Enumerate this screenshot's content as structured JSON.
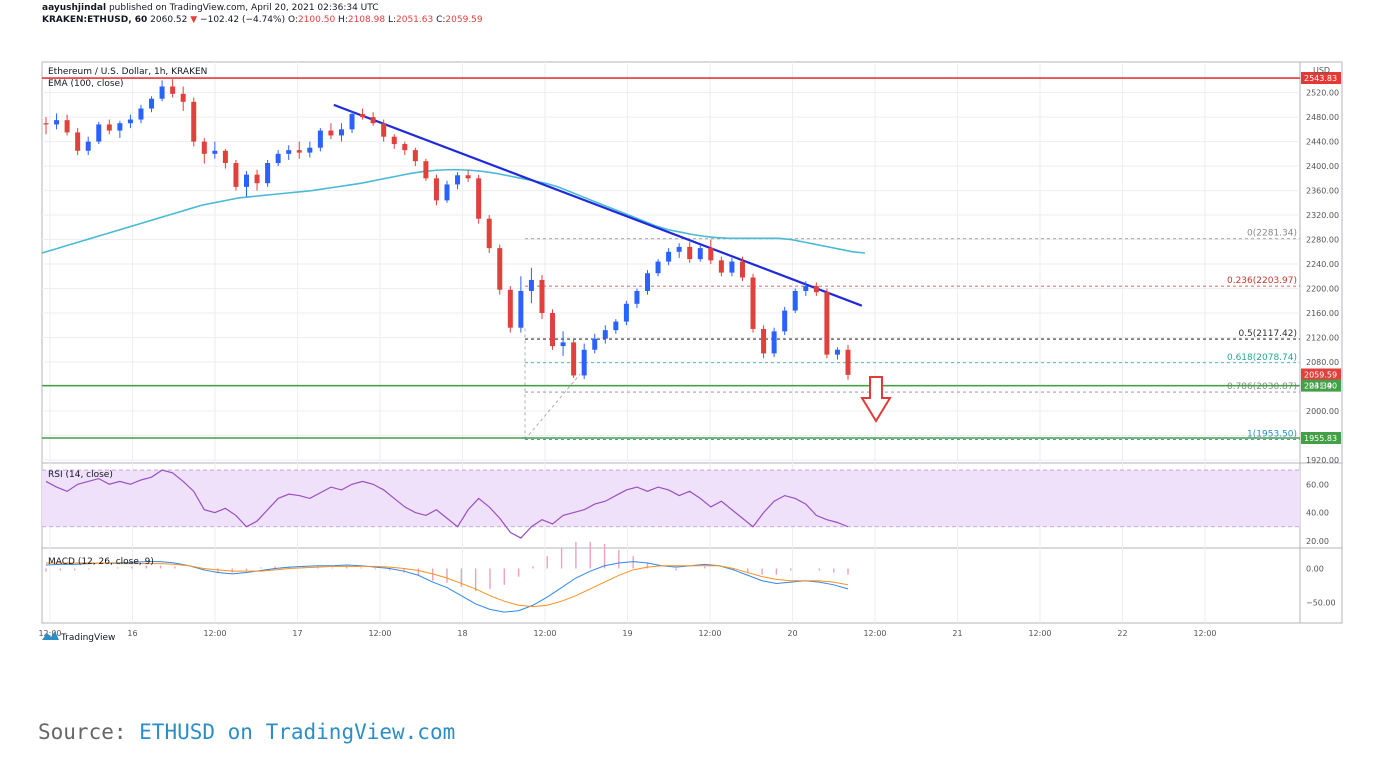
{
  "header": {
    "author": "aayushjindal",
    "published": "published on TradingView.com, April 20, 2021 02:36:34 UTC",
    "symbol": "KRAKEN:ETHUSD, 60",
    "last": "2060.52",
    "change_arrow": "▼",
    "change": "−102.42 (−4.74%)",
    "o_label": "O:",
    "o": "2100.50",
    "h_label": "H:",
    "h": "2108.98",
    "l_label": "L:",
    "l": "2051.63",
    "c_label": "C:",
    "c": "2059.59"
  },
  "panel_title": "Ethereum / U.S. Dollar, 1h, KRAKEN",
  "ema_label": "EMA (100, close)",
  "rsi_label": "RSI (14, close)",
  "macd_label": "MACD (12, 26, close, 9)",
  "brand": "TradingView",
  "currency_label": "USD",
  "source": {
    "prefix": "Source: ",
    "link": "ETHUSD on TradingView.com"
  },
  "colors": {
    "bull": "#2962ff",
    "bear": "#e0413d",
    "ema": "#4bbad6",
    "trend": "#1f2bdb",
    "support": "#43a047",
    "resistance": "#e53935",
    "rsi": "#9c4fc2",
    "rsi_band": "#efe1fa",
    "macd": "#2e88e6",
    "signal": "#ff8f1f"
  },
  "chart_data": {
    "type": "candlestick",
    "x_ticks": [
      "12:00",
      "16",
      "12:00",
      "17",
      "12:00",
      "18",
      "12:00",
      "19",
      "12:00",
      "20",
      "12:00",
      "21",
      "12:00",
      "22",
      "12:00"
    ],
    "y_ticks": [
      "2520.00",
      "2480.00",
      "2440.00",
      "2400.00",
      "2360.00",
      "2320.00",
      "2280.00",
      "2240.00",
      "2200.00",
      "2160.00",
      "2120.00",
      "2080.00",
      "2040.00",
      "2000.00",
      "1960.00",
      "1920.00"
    ],
    "ylim": [
      1915,
      2570
    ],
    "price_labels": [
      {
        "value": 2543.83,
        "text": "2543.83",
        "color": "#e53935"
      },
      {
        "value": 2059.59,
        "text": "2059.59",
        "color": "#e0413d"
      },
      {
        "value": 2041.4,
        "text": "2041.40",
        "color": "#43a047"
      },
      {
        "value": 1955.83,
        "text": "1955.83",
        "color": "#43a047"
      }
    ],
    "countdown": "23:39",
    "horizontal_lines": [
      {
        "value": 2543.83,
        "color": "#e53935"
      },
      {
        "value": 2041.4,
        "color": "#43a047"
      },
      {
        "value": 1955.83,
        "color": "#43a047"
      }
    ],
    "fib_levels": [
      {
        "text": "0(2281.34)",
        "value": 2281.34,
        "color": "#888888"
      },
      {
        "text": "0.236(2203.97)",
        "value": 2203.97,
        "color": "#c0392b"
      },
      {
        "text": "0.5(2117.42)",
        "value": 2117.42,
        "color": "#333333"
      },
      {
        "text": "0.618(2078.74)",
        "value": 2078.74,
        "color": "#26a69a"
      },
      {
        "text": "0.786(2030.87)",
        "value": 2030.87,
        "color": "#888888"
      },
      {
        "text": "1(1953.50)",
        "value": 1953.5,
        "color": "#2c8ec6"
      }
    ],
    "trendline": {
      "from": {
        "x": 17.22,
        "y": 2500
      },
      "to": {
        "x": 20.42,
        "y": 2172
      }
    },
    "candles": [
      {
        "o": 2470,
        "h": 2480,
        "l": 2452,
        "c": 2468
      },
      {
        "o": 2468,
        "h": 2486,
        "l": 2460,
        "c": 2475
      },
      {
        "o": 2475,
        "h": 2484,
        "l": 2450,
        "c": 2455
      },
      {
        "o": 2455,
        "h": 2462,
        "l": 2418,
        "c": 2425
      },
      {
        "o": 2425,
        "h": 2448,
        "l": 2418,
        "c": 2440
      },
      {
        "o": 2440,
        "h": 2472,
        "l": 2436,
        "c": 2468
      },
      {
        "o": 2468,
        "h": 2476,
        "l": 2452,
        "c": 2458
      },
      {
        "o": 2458,
        "h": 2474,
        "l": 2446,
        "c": 2470
      },
      {
        "o": 2470,
        "h": 2484,
        "l": 2462,
        "c": 2476
      },
      {
        "o": 2476,
        "h": 2500,
        "l": 2470,
        "c": 2494
      },
      {
        "o": 2494,
        "h": 2514,
        "l": 2488,
        "c": 2510
      },
      {
        "o": 2510,
        "h": 2540,
        "l": 2506,
        "c": 2530
      },
      {
        "o": 2530,
        "h": 2542,
        "l": 2512,
        "c": 2518
      },
      {
        "o": 2518,
        "h": 2530,
        "l": 2490,
        "c": 2505
      },
      {
        "o": 2505,
        "h": 2512,
        "l": 2432,
        "c": 2440
      },
      {
        "o": 2440,
        "h": 2446,
        "l": 2404,
        "c": 2420
      },
      {
        "o": 2420,
        "h": 2440,
        "l": 2412,
        "c": 2425
      },
      {
        "o": 2425,
        "h": 2428,
        "l": 2396,
        "c": 2405
      },
      {
        "o": 2405,
        "h": 2410,
        "l": 2360,
        "c": 2366
      },
      {
        "o": 2366,
        "h": 2392,
        "l": 2350,
        "c": 2386
      },
      {
        "o": 2386,
        "h": 2394,
        "l": 2360,
        "c": 2372
      },
      {
        "o": 2372,
        "h": 2410,
        "l": 2366,
        "c": 2405
      },
      {
        "o": 2405,
        "h": 2426,
        "l": 2400,
        "c": 2420
      },
      {
        "o": 2420,
        "h": 2434,
        "l": 2410,
        "c": 2426
      },
      {
        "o": 2426,
        "h": 2440,
        "l": 2412,
        "c": 2422
      },
      {
        "o": 2422,
        "h": 2440,
        "l": 2414,
        "c": 2430
      },
      {
        "o": 2430,
        "h": 2462,
        "l": 2424,
        "c": 2458
      },
      {
        "o": 2458,
        "h": 2470,
        "l": 2444,
        "c": 2450
      },
      {
        "o": 2450,
        "h": 2470,
        "l": 2440,
        "c": 2460
      },
      {
        "o": 2460,
        "h": 2490,
        "l": 2454,
        "c": 2485
      },
      {
        "o": 2485,
        "h": 2494,
        "l": 2476,
        "c": 2480
      },
      {
        "o": 2480,
        "h": 2488,
        "l": 2466,
        "c": 2470
      },
      {
        "o": 2470,
        "h": 2476,
        "l": 2440,
        "c": 2448
      },
      {
        "o": 2448,
        "h": 2452,
        "l": 2428,
        "c": 2436
      },
      {
        "o": 2436,
        "h": 2440,
        "l": 2418,
        "c": 2426
      },
      {
        "o": 2426,
        "h": 2430,
        "l": 2400,
        "c": 2408
      },
      {
        "o": 2408,
        "h": 2412,
        "l": 2376,
        "c": 2380
      },
      {
        "o": 2380,
        "h": 2386,
        "l": 2336,
        "c": 2344
      },
      {
        "o": 2344,
        "h": 2376,
        "l": 2340,
        "c": 2370
      },
      {
        "o": 2370,
        "h": 2390,
        "l": 2362,
        "c": 2385
      },
      {
        "o": 2385,
        "h": 2394,
        "l": 2374,
        "c": 2380
      },
      {
        "o": 2380,
        "h": 2386,
        "l": 2306,
        "c": 2314
      },
      {
        "o": 2314,
        "h": 2320,
        "l": 2258,
        "c": 2266
      },
      {
        "o": 2266,
        "h": 2272,
        "l": 2190,
        "c": 2198
      },
      {
        "o": 2198,
        "h": 2204,
        "l": 2128,
        "c": 2136
      },
      {
        "o": 2136,
        "h": 2220,
        "l": 2128,
        "c": 2196
      },
      {
        "o": 2196,
        "h": 2234,
        "l": 2176,
        "c": 2214
      },
      {
        "o": 2214,
        "h": 2222,
        "l": 2150,
        "c": 2160
      },
      {
        "o": 2160,
        "h": 2166,
        "l": 2100,
        "c": 2106
      },
      {
        "o": 2106,
        "h": 2130,
        "l": 2090,
        "c": 2112
      },
      {
        "o": 2112,
        "h": 2116,
        "l": 2054,
        "c": 2058
      },
      {
        "o": 2058,
        "h": 2110,
        "l": 2052,
        "c": 2100
      },
      {
        "o": 2100,
        "h": 2126,
        "l": 2094,
        "c": 2118
      },
      {
        "o": 2118,
        "h": 2140,
        "l": 2110,
        "c": 2132
      },
      {
        "o": 2132,
        "h": 2150,
        "l": 2126,
        "c": 2146
      },
      {
        "o": 2146,
        "h": 2180,
        "l": 2140,
        "c": 2175
      },
      {
        "o": 2175,
        "h": 2200,
        "l": 2168,
        "c": 2196
      },
      {
        "o": 2196,
        "h": 2230,
        "l": 2190,
        "c": 2225
      },
      {
        "o": 2225,
        "h": 2248,
        "l": 2220,
        "c": 2244
      },
      {
        "o": 2244,
        "h": 2266,
        "l": 2238,
        "c": 2260
      },
      {
        "o": 2260,
        "h": 2274,
        "l": 2250,
        "c": 2268
      },
      {
        "o": 2268,
        "h": 2276,
        "l": 2242,
        "c": 2248
      },
      {
        "o": 2248,
        "h": 2272,
        "l": 2244,
        "c": 2266
      },
      {
        "o": 2266,
        "h": 2280,
        "l": 2240,
        "c": 2246
      },
      {
        "o": 2246,
        "h": 2252,
        "l": 2220,
        "c": 2226
      },
      {
        "o": 2226,
        "h": 2250,
        "l": 2220,
        "c": 2244
      },
      {
        "o": 2244,
        "h": 2252,
        "l": 2212,
        "c": 2218
      },
      {
        "o": 2218,
        "h": 2224,
        "l": 2128,
        "c": 2134
      },
      {
        "o": 2134,
        "h": 2140,
        "l": 2086,
        "c": 2094
      },
      {
        "o": 2094,
        "h": 2136,
        "l": 2088,
        "c": 2130
      },
      {
        "o": 2130,
        "h": 2170,
        "l": 2124,
        "c": 2164
      },
      {
        "o": 2164,
        "h": 2200,
        "l": 2160,
        "c": 2196
      },
      {
        "o": 2196,
        "h": 2212,
        "l": 2188,
        "c": 2204
      },
      {
        "o": 2204,
        "h": 2210,
        "l": 2188,
        "c": 2194
      },
      {
        "o": 2194,
        "h": 2200,
        "l": 2086,
        "c": 2092
      },
      {
        "o": 2092,
        "h": 2104,
        "l": 2084,
        "c": 2100
      },
      {
        "o": 2100,
        "h": 2108,
        "l": 2051,
        "c": 2059
      }
    ],
    "ema": [
      2258,
      2264,
      2270,
      2276,
      2282,
      2288,
      2294,
      2300,
      2306,
      2312,
      2318,
      2324,
      2330,
      2336,
      2340,
      2344,
      2348,
      2350,
      2352,
      2354,
      2356,
      2358,
      2360,
      2363,
      2366,
      2369,
      2372,
      2376,
      2380,
      2384,
      2388,
      2391,
      2393,
      2394,
      2394,
      2393,
      2391,
      2388,
      2384,
      2380,
      2376,
      2372,
      2366,
      2358,
      2350,
      2342,
      2334,
      2326,
      2318,
      2310,
      2302,
      2296,
      2292,
      2288,
      2285,
      2283,
      2282,
      2282,
      2282,
      2282,
      2282,
      2280,
      2276,
      2272,
      2268,
      2264,
      2260,
      2258
    ],
    "rsi": {
      "ylim": [
        15,
        75
      ],
      "ticks": [
        "60.00",
        "40.00",
        "20.00"
      ],
      "band": [
        30,
        70
      ],
      "values": [
        62,
        58,
        55,
        60,
        62,
        64,
        60,
        62,
        60,
        63,
        65,
        70,
        68,
        62,
        55,
        42,
        40,
        43,
        38,
        30,
        34,
        42,
        50,
        53,
        52,
        50,
        54,
        58,
        56,
        60,
        62,
        60,
        56,
        50,
        44,
        40,
        38,
        42,
        36,
        30,
        42,
        50,
        44,
        36,
        26,
        22,
        30,
        35,
        32,
        38,
        40,
        42,
        46,
        48,
        52,
        56,
        58,
        55,
        58,
        56,
        52,
        55,
        50,
        44,
        48,
        42,
        36,
        30,
        40,
        48,
        52,
        50,
        46,
        38,
        35,
        33,
        30
      ]
    },
    "macd": {
      "ylim": [
        -80,
        30
      ],
      "ticks": [
        "0.00",
        "−50.00"
      ],
      "macd": [
        5,
        6,
        6,
        7,
        8,
        8,
        9,
        10,
        10,
        8,
        4,
        -2,
        -6,
        -8,
        -6,
        -3,
        0,
        2,
        3,
        4,
        4,
        5,
        4,
        2,
        0,
        -4,
        -10,
        -20,
        -28,
        -40,
        -52,
        -60,
        -64,
        -62,
        -54,
        -42,
        -28,
        -14,
        -4,
        4,
        8,
        10,
        8,
        4,
        2,
        4,
        6,
        4,
        -2,
        -10,
        -18,
        -22,
        -20,
        -18,
        -20,
        -24,
        -30
      ],
      "signal": [
        8,
        8,
        8,
        8,
        8,
        7,
        7,
        7,
        7,
        6,
        4,
        0,
        -2,
        -4,
        -4,
        -4,
        -2,
        0,
        1,
        2,
        3,
        3,
        3,
        3,
        2,
        0,
        -3,
        -8,
        -14,
        -22,
        -30,
        -40,
        -48,
        -54,
        -56,
        -54,
        -48,
        -40,
        -30,
        -20,
        -10,
        -2,
        2,
        4,
        4,
        4,
        4,
        4,
        0,
        -6,
        -12,
        -16,
        -18,
        -18,
        -18,
        -20,
        -24
      ]
    }
  }
}
